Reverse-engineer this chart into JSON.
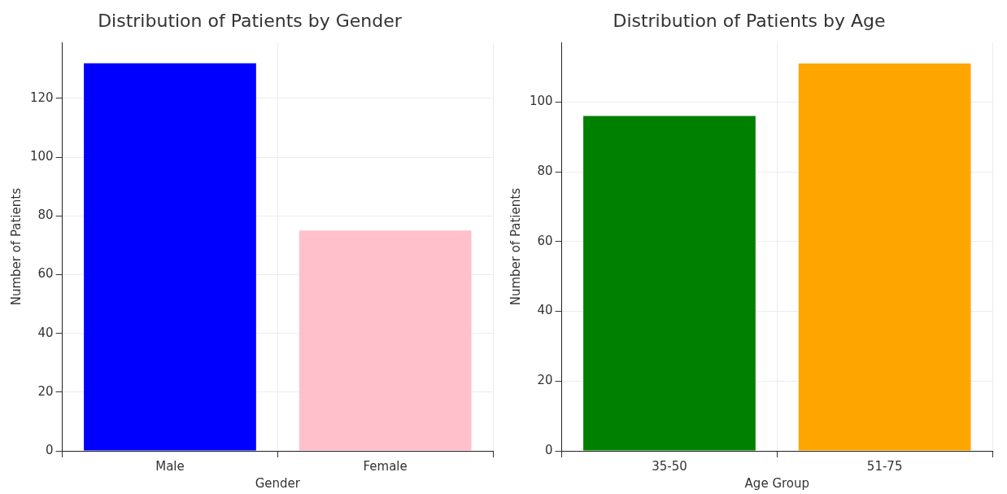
{
  "chart_data": [
    {
      "type": "bar",
      "title": "Distribution of Patients by Gender",
      "xlabel": "Gender",
      "ylabel": "Number of Patients",
      "categories": [
        "Male",
        "Female"
      ],
      "values": [
        132,
        75
      ],
      "colors": [
        "#0000ff",
        "#ffc0cb"
      ],
      "ylim": [
        0,
        139
      ],
      "yticks": [
        0,
        20,
        40,
        60,
        80,
        100,
        120
      ],
      "grid": true
    },
    {
      "type": "bar",
      "title": "Distribution of Patients by Age",
      "xlabel": "Age Group",
      "ylabel": "Number of Patients",
      "categories": [
        "35-50",
        "51-75"
      ],
      "values": [
        96,
        111
      ],
      "colors": [
        "#008000",
        "#ffa500"
      ],
      "ylim": [
        0,
        117
      ],
      "yticks": [
        0,
        20,
        40,
        60,
        80,
        100
      ],
      "grid": true
    }
  ]
}
